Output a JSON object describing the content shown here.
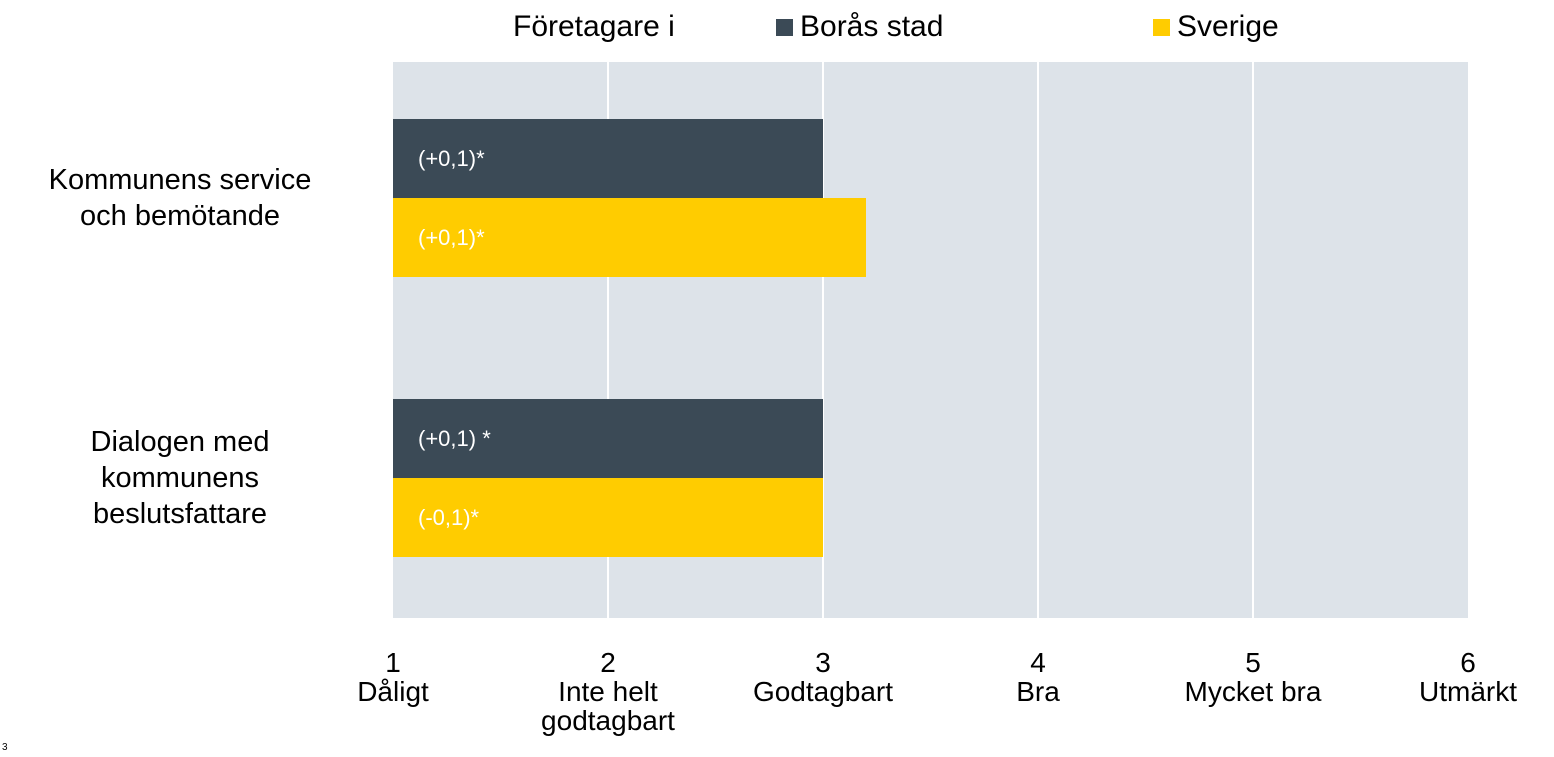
{
  "chart_data": {
    "type": "hbar",
    "legend_title": "Företagare i",
    "categories": [
      "Kommunens service\noch bemötande",
      "Dialogen med\nkommunens\nbeslutsfattare"
    ],
    "series": [
      {
        "name": "Borås stad",
        "color": "#3b4a56",
        "values": [
          3.0,
          3.0
        ],
        "labels": [
          "(+0,1)*",
          "(+0,1) *"
        ]
      },
      {
        "name": "Sverige",
        "color": "#ffcc00",
        "values": [
          3.2,
          3.0
        ],
        "labels": [
          "(+0,1)*",
          "(-0,1)*"
        ]
      }
    ],
    "xlim": [
      1,
      6
    ],
    "xticks": [
      {
        "value": 1,
        "label": "1\nDåligt"
      },
      {
        "value": 2,
        "label": "2\nInte helt\ngodtagbart"
      },
      {
        "value": 3,
        "label": "3\nGodtagbart"
      },
      {
        "value": 4,
        "label": "4\nBra"
      },
      {
        "value": 5,
        "label": "5\nMycket bra"
      },
      {
        "value": 6,
        "label": "6\nUtmärkt"
      }
    ],
    "grid": true,
    "legend": "top",
    "page_number": "3"
  }
}
